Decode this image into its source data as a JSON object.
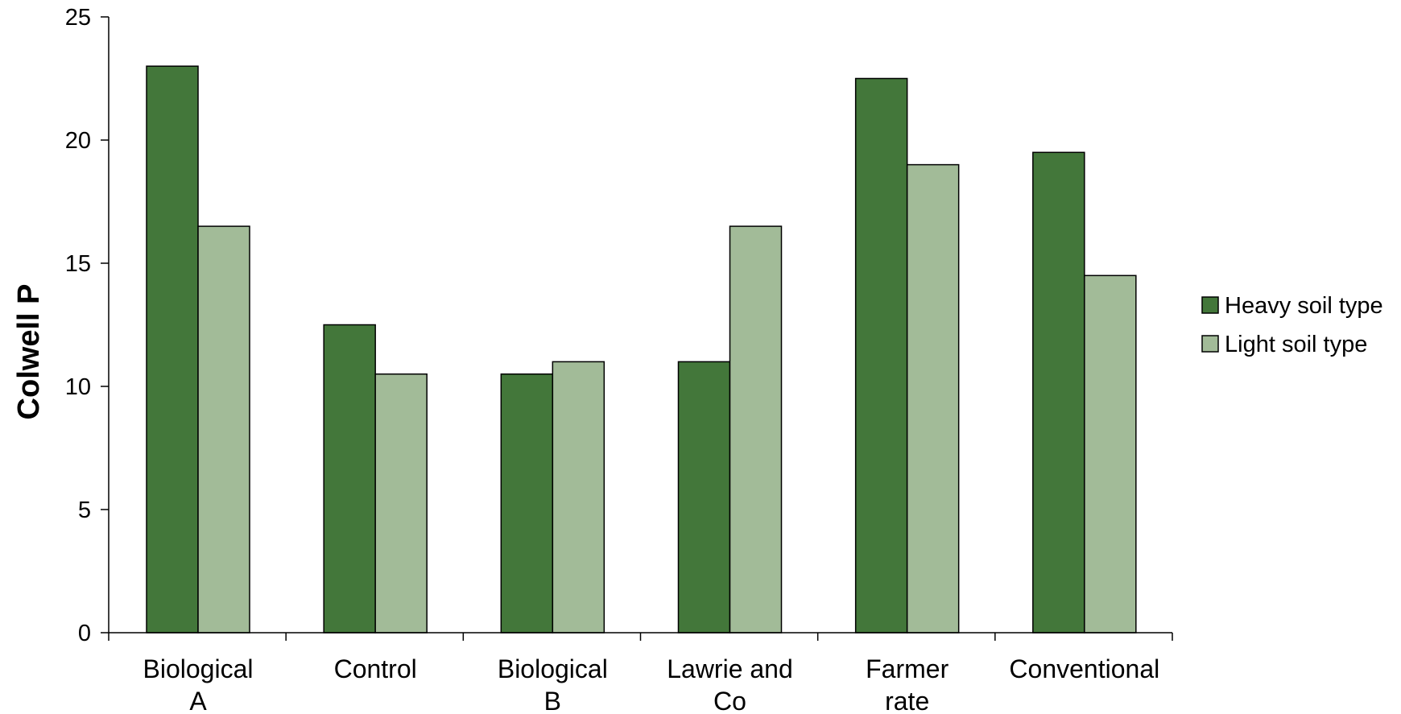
{
  "chart_data": {
    "type": "bar",
    "title": "",
    "xlabel": "",
    "ylabel": "Colwell P",
    "ylim": [
      0,
      25
    ],
    "yticks": [
      0,
      5,
      10,
      15,
      20,
      25
    ],
    "grid": false,
    "legend_position": "right",
    "categories": [
      [
        "Biological",
        "A"
      ],
      [
        "Control"
      ],
      [
        "Biological",
        "B"
      ],
      [
        "Lawrie and",
        "Co"
      ],
      [
        "Farmer",
        "rate"
      ],
      [
        "Conventional"
      ]
    ],
    "series": [
      {
        "name": "Heavy soil type",
        "color": "#43773a",
        "values": [
          23.0,
          12.5,
          10.5,
          11.0,
          22.5,
          19.5
        ]
      },
      {
        "name": "Light soil type",
        "color": "#a2bb98",
        "values": [
          16.5,
          10.5,
          11.0,
          16.5,
          19.0,
          14.5
        ]
      }
    ]
  }
}
